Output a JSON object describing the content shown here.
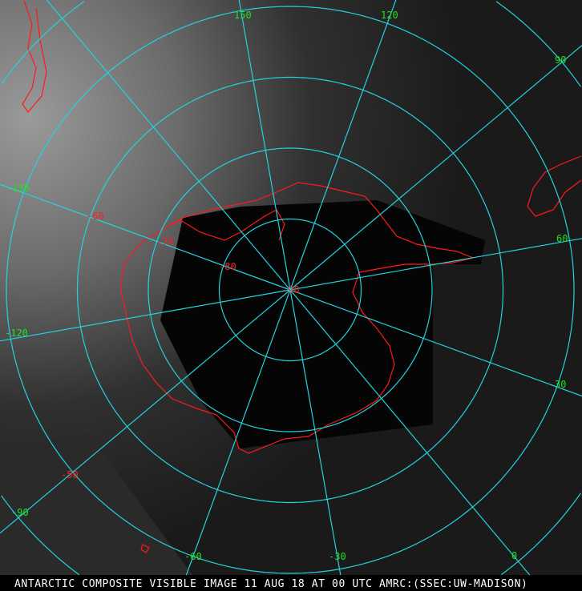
{
  "caption": "ANTARCTIC COMPOSITE VISIBLE IMAGE 11 AUG 18 AT 00 UTC AMRC:(SSEC:UW-MADISON)",
  "projection": "south polar stereographic",
  "colors": {
    "graticule": "#22d3de",
    "coastline": "#ff1a1a",
    "longitude_labels": "#22e022",
    "latitude_labels": "#ff2020",
    "background": "#161616"
  },
  "longitude_labels": [
    "150",
    "120",
    "90",
    "60",
    "30",
    "0",
    "-30",
    "-60",
    "-90",
    "-120",
    "-150"
  ],
  "latitude_labels": [
    "-50",
    "-60",
    "-70",
    "-80",
    "-90"
  ],
  "graticule": {
    "latitudes": [
      -80,
      -70,
      -60,
      -50,
      -40
    ],
    "longitude_step": 30
  }
}
